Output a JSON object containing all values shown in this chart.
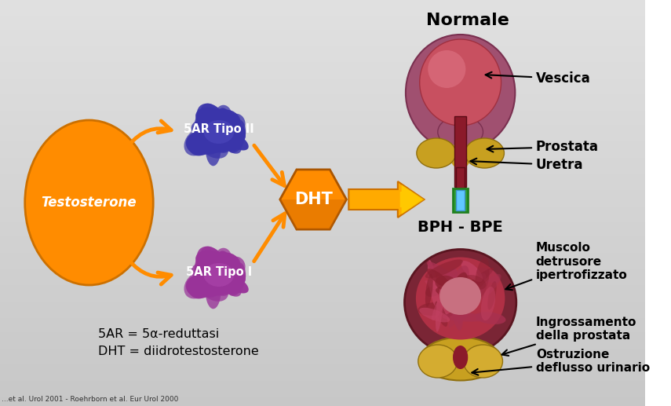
{
  "orange": "#FF8C00",
  "dark_orange": "#CC6600",
  "title_normale": "Normale",
  "label_vescica": "Vescica",
  "label_prostata": "Prostata",
  "label_uretra": "Uretra",
  "label_bph": "BPH - BPE",
  "label_muscolo": "Muscolo\ndetrusore\nipertrofizzato",
  "label_ingrossamento": "Ingrossamento\ndella prostata",
  "label_ostruzione": "Ostruzione\ndeflusso urinario",
  "label_testosterone": "Testosterone",
  "label_5ar2": "5AR Tipo II",
  "label_5ar1": "5AR Tipo I",
  "label_dht": "DHT",
  "footnote1": "5AR = 5α-reduttasi",
  "footnote2": "DHT = diidrotestosterone",
  "footnote_ref": "...et al. Urol 2001 - Roehrborn et al. Eur Urol 2000",
  "blob2_color": "#3a35aa",
  "blob1_color": "#993399",
  "bladder_outer": "#8b4560",
  "bladder_inner": "#c85060",
  "bladder_highlight": "#e07585",
  "prostate_yellow": "#c8a020",
  "urethra_red": "#8b1a2a",
  "green_tube": "#30a030",
  "green_tube_border": "#208020",
  "bph_outer": "#7a2535",
  "bph_inner": "#a03040",
  "bph_texture": "#b84a5a"
}
